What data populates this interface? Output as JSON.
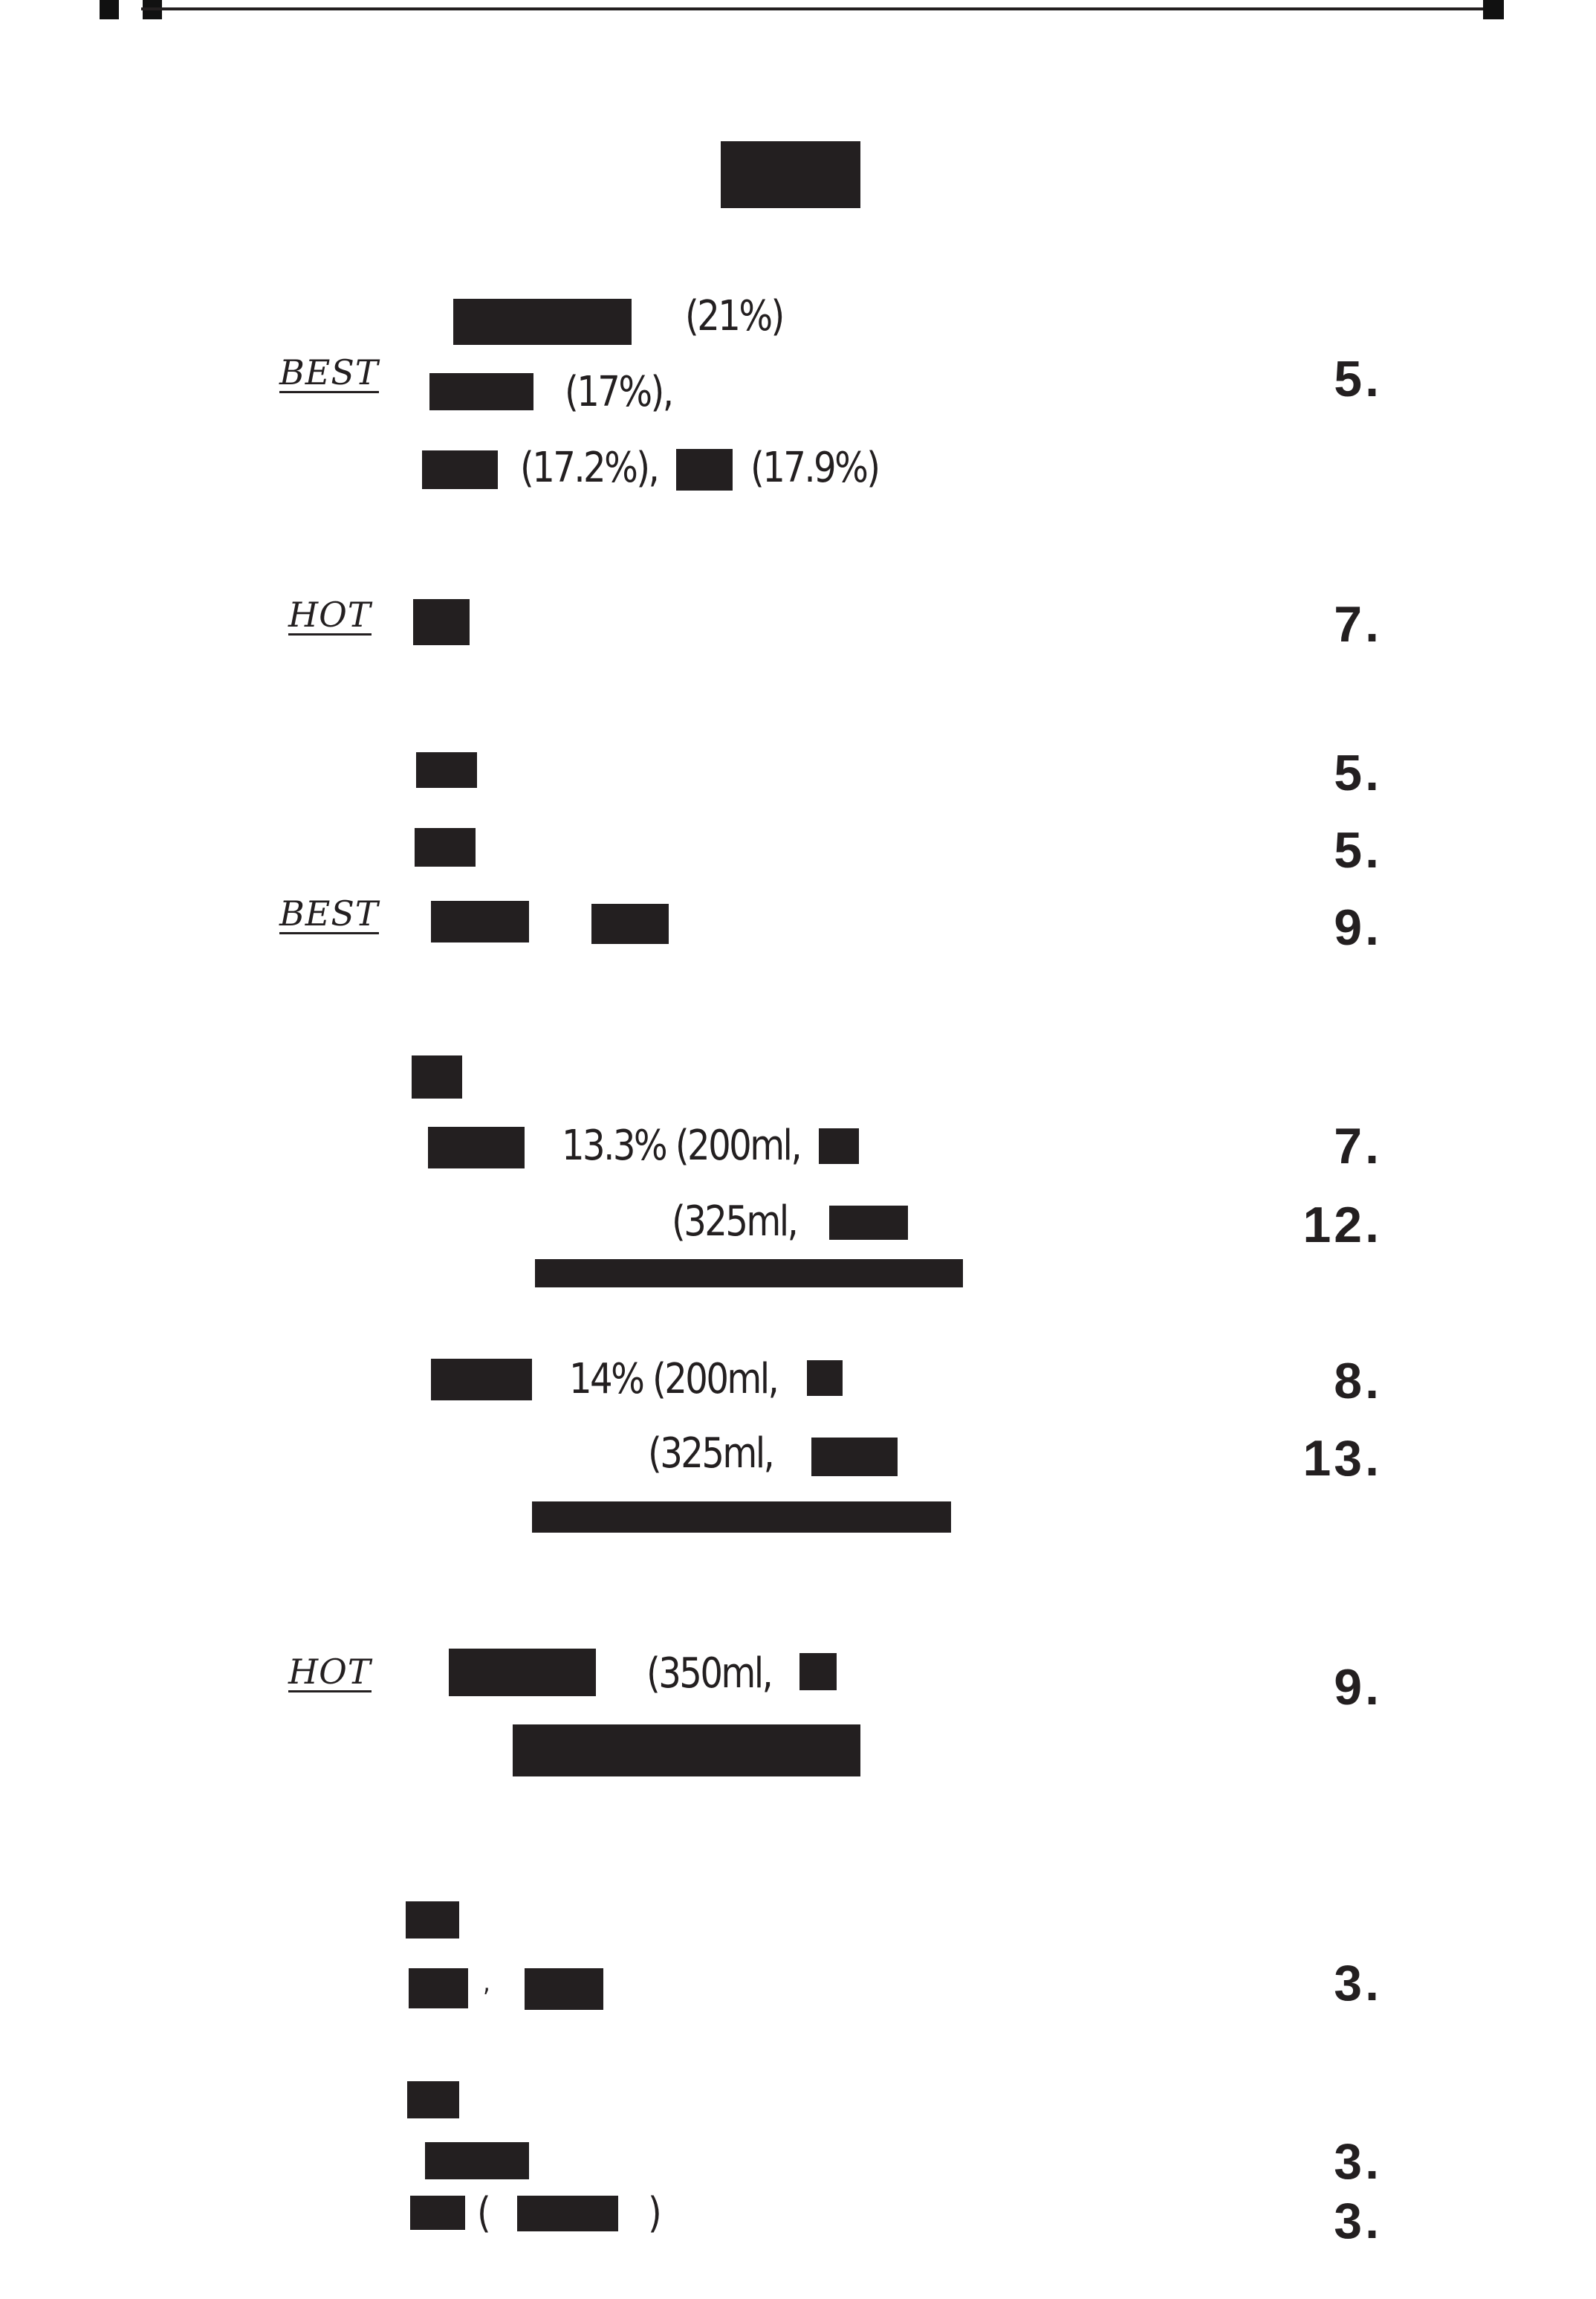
{
  "badges": {
    "best": "BEST",
    "hot": "HOT"
  },
  "sections": {
    "s1": {
      "line1_pct": "(21%)",
      "line2_pct": "(17%),",
      "line3_pct_a": "(17.2%),",
      "line3_pct_b": "(17.9%)",
      "price": "5."
    },
    "s2": {
      "price": "7."
    },
    "s3": {
      "price_a": "5.",
      "price_b": "5.",
      "price_c": "9."
    },
    "s4": {
      "line1_text": "13.3% (200ml,",
      "line1_price": "7.",
      "line2_text": "(325ml,",
      "line2_price": "12.",
      "line3_text": "14% (200ml,",
      "line3_price": "8.",
      "line4_text": "(325ml,",
      "line4_price": "13."
    },
    "s5": {
      "line1_text": "(350ml,",
      "price": "9."
    },
    "s6": {
      "price_a": "3.",
      "price_b": "3.",
      "price_c": "3.",
      "paren_open": "(",
      "paren_close": ")",
      "comma": ","
    }
  }
}
